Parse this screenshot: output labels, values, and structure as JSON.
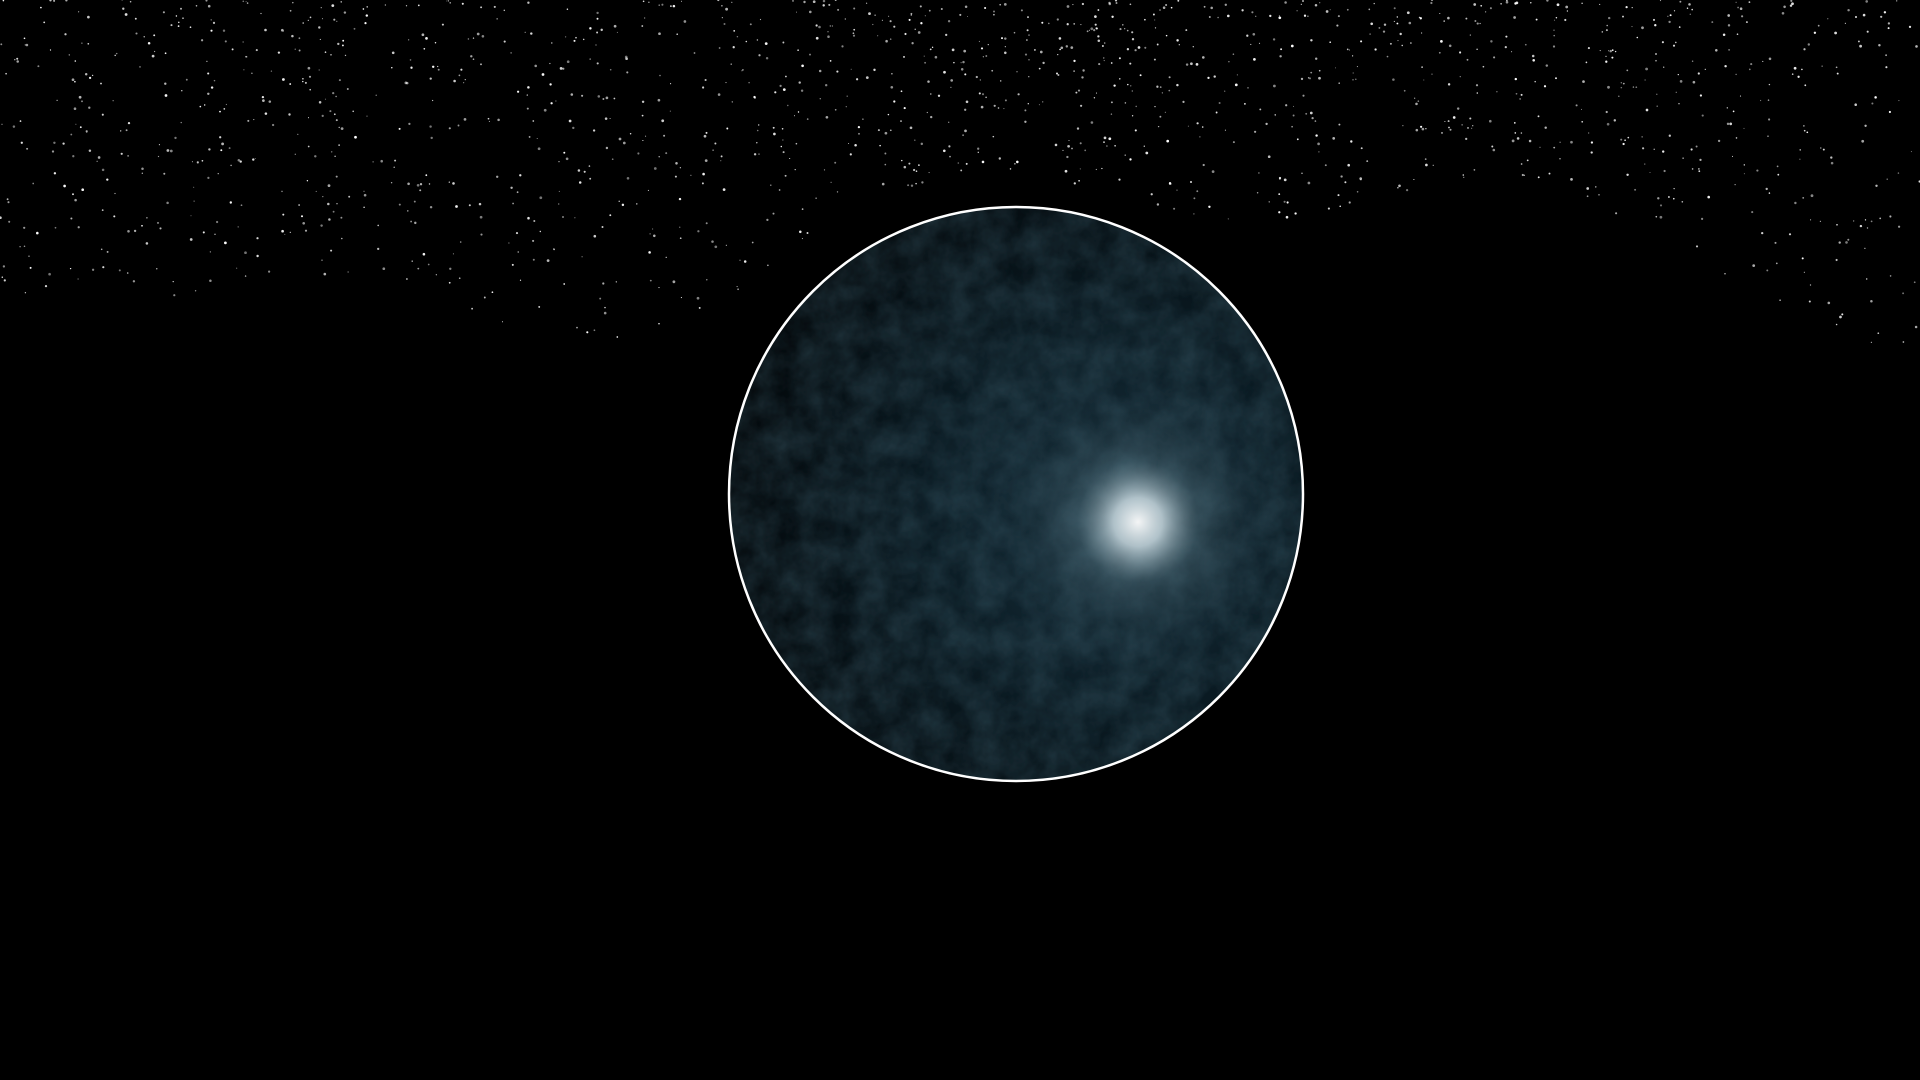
{
  "scene": {
    "background_color": "#000000",
    "starfield": {
      "star_color": "#ffffff",
      "region": "upper-sky"
    },
    "planet": {
      "surface_color": "#0a1a22",
      "surface_shadow_color": "#020507",
      "highlight_color": "#ffffff",
      "outline_color": "#ffffff",
      "selected": true
    }
  }
}
